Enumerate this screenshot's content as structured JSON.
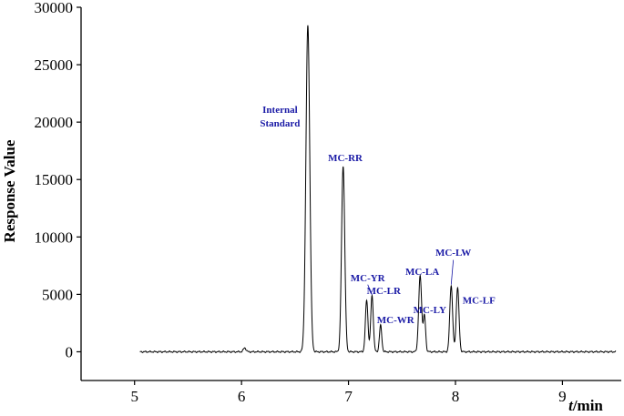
{
  "chart_data": {
    "type": "line",
    "xlabel_italic": "t",
    "xlabel_rest": "/min",
    "ylabel": "Response Value",
    "xlim": [
      4.5,
      9.55
    ],
    "ylim": [
      -2500,
      30000
    ],
    "xticks": [
      5,
      6,
      7,
      8,
      9
    ],
    "yticks": [
      0,
      5000,
      10000,
      15000,
      20000,
      25000,
      30000
    ],
    "xtick_labels": [
      "5",
      "6",
      "7",
      "8",
      "9"
    ],
    "ytick_labels": [
      "0",
      "5000",
      "10000",
      "15000",
      "20000",
      "25000",
      "30000"
    ],
    "x_start": 5.05,
    "x_end": 9.5,
    "peaks": [
      {
        "rt": 6.03,
        "height": 350,
        "width": 0.012
      },
      {
        "rt": 6.62,
        "height": 28400,
        "width": 0.018
      },
      {
        "rt": 6.95,
        "height": 16200,
        "width": 0.015
      },
      {
        "rt": 7.17,
        "height": 4500,
        "width": 0.012
      },
      {
        "rt": 7.22,
        "height": 4900,
        "width": 0.012
      },
      {
        "rt": 7.3,
        "height": 2300,
        "width": 0.011
      },
      {
        "rt": 7.67,
        "height": 6600,
        "width": 0.014
      },
      {
        "rt": 7.71,
        "height": 3100,
        "width": 0.011
      },
      {
        "rt": 7.96,
        "height": 5800,
        "width": 0.013
      },
      {
        "rt": 8.02,
        "height": 5600,
        "width": 0.013
      }
    ],
    "labels": [
      {
        "text": "Internal",
        "x": 6.36,
        "y": 20800
      },
      {
        "text": "Standard",
        "x": 6.36,
        "y": 19600
      },
      {
        "text": "MC-RR",
        "x": 6.97,
        "y": 16600
      },
      {
        "text": "MC-YR",
        "x": 7.18,
        "y": 6150
      },
      {
        "text": "MC-LR",
        "x": 7.33,
        "y": 5050
      },
      {
        "text": "MC-WR",
        "x": 7.44,
        "y": 2500
      },
      {
        "text": "MC-LA",
        "x": 7.69,
        "y": 6700
      },
      {
        "text": "MC-LY",
        "x": 7.76,
        "y": 3350
      },
      {
        "text": "MC-LW",
        "x": 7.98,
        "y": 8350
      },
      {
        "text": "MC-LF",
        "x": 8.22,
        "y": 4200
      }
    ],
    "leaders": [
      {
        "x1": 7.18,
        "y1": 5850,
        "x2": 7.22,
        "y2": 4950
      },
      {
        "x1": 7.98,
        "y1": 8000,
        "x2": 7.96,
        "y2": 5850
      }
    ]
  }
}
